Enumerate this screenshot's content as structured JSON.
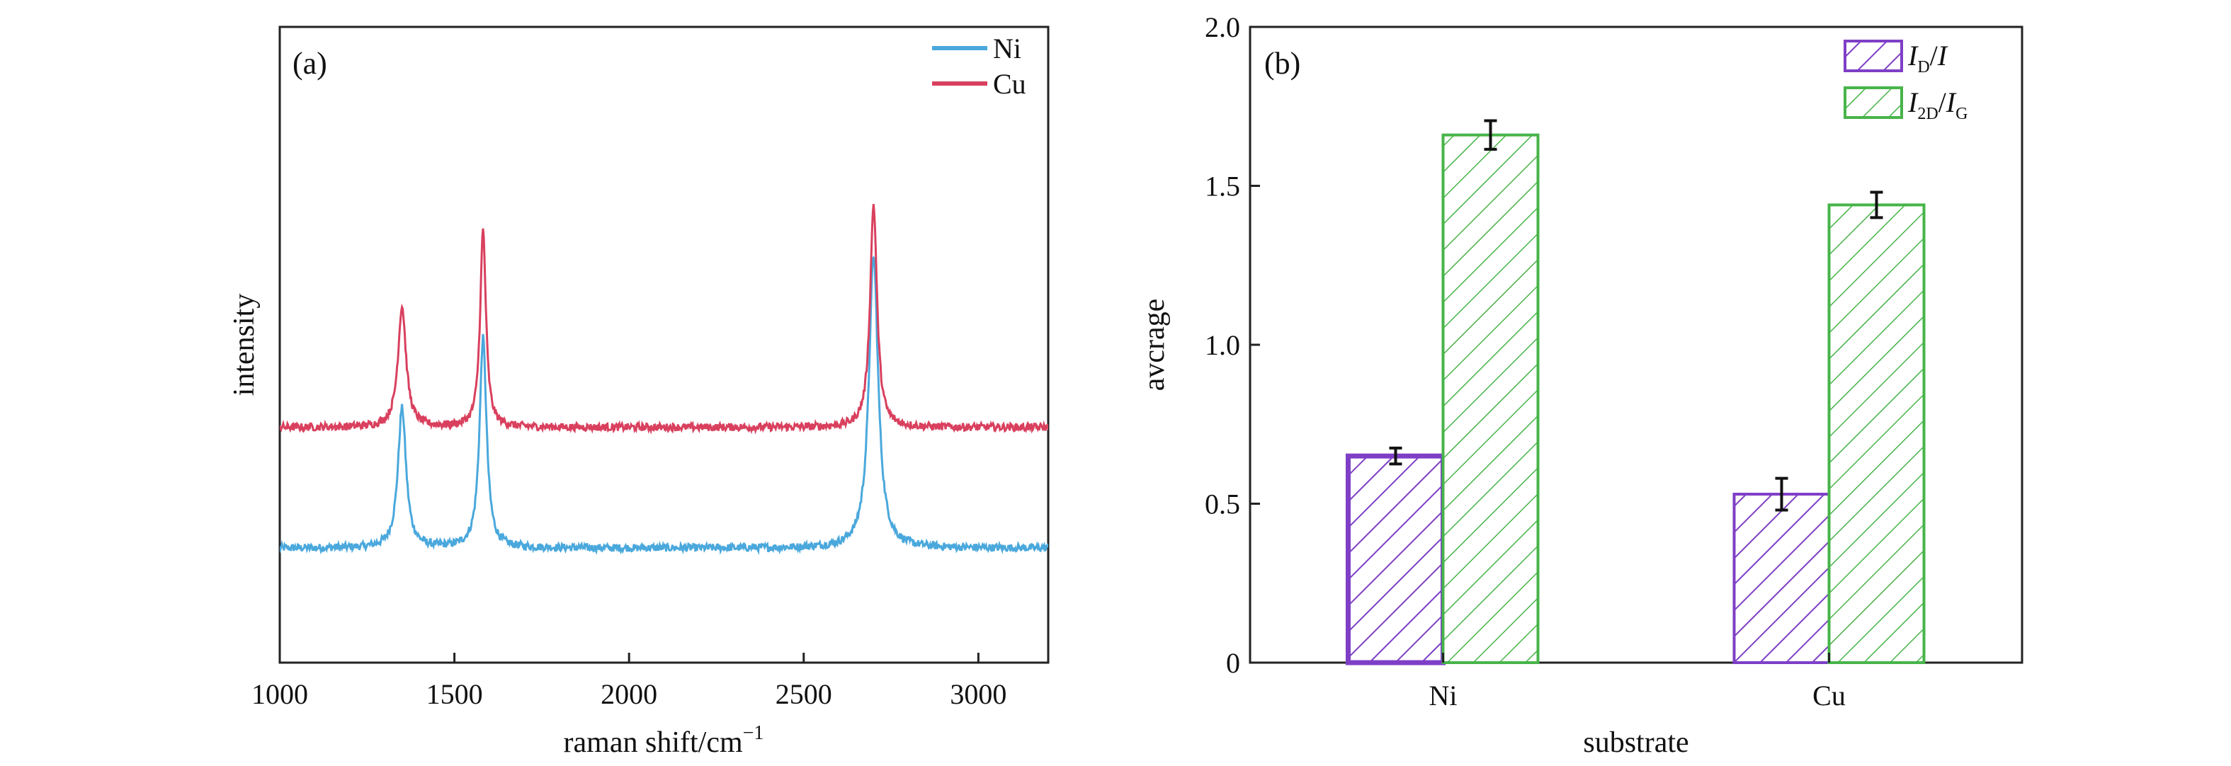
{
  "chart_data": [
    {
      "type": "line",
      "panel_label": "(a)",
      "xlabel": "raman shift/cm",
      "xlabel_sup": "−1",
      "ylabel": "intensity",
      "xlim": [
        1000,
        3200
      ],
      "x_ticks": [
        "1000",
        "1500",
        "2000",
        "2500",
        "3000"
      ],
      "y_ticks_shown": false,
      "legend_position": "top-right",
      "series": [
        {
          "name": "Ni",
          "color": "#4aa8dc",
          "baseline": 0.18,
          "noise": 0.006,
          "peaks": [
            {
              "x": 1350,
              "height": 0.22,
              "width": 14
            },
            {
              "x": 1582,
              "height": 0.33,
              "width": 12
            },
            {
              "x": 2700,
              "height": 0.46,
              "width": 16
            }
          ]
        },
        {
          "name": "Cu",
          "color": "#d9405e",
          "baseline": 0.37,
          "noise": 0.006,
          "peaks": [
            {
              "x": 1350,
              "height": 0.19,
              "width": 14
            },
            {
              "x": 1582,
              "height": 0.31,
              "width": 10
            },
            {
              "x": 2700,
              "height": 0.35,
              "width": 12
            }
          ]
        }
      ]
    },
    {
      "type": "bar",
      "panel_label": "(b)",
      "xlabel": "substrate",
      "ylabel": "avcrage",
      "ylim": [
        0,
        2.0
      ],
      "y_ticks": [
        "0",
        "0.5",
        "1.0",
        "1.5",
        "2.0"
      ],
      "categories": [
        "Ni",
        "Cu"
      ],
      "legend_position": "top-right",
      "series": [
        {
          "name": "I_D/I",
          "legend_parts": [
            "I",
            "D",
            "/",
            "I",
            ""
          ],
          "color": "#7e3fc6",
          "values": [
            0.65,
            0.53
          ],
          "errors": [
            0.025,
            0.05
          ]
        },
        {
          "name": "I_2D/I_G",
          "legend_parts": [
            "I",
            "2D",
            "/",
            "I",
            "G"
          ],
          "color": "#47b449",
          "values": [
            1.66,
            1.44
          ],
          "errors": [
            0.045,
            0.04
          ]
        }
      ]
    }
  ]
}
